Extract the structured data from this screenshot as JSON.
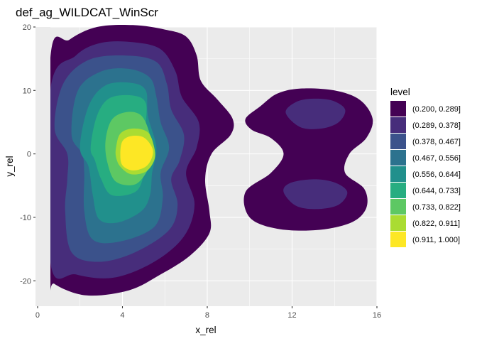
{
  "chart_data": {
    "type": "contour",
    "title": "def_ag_WILDCAT_WinScr",
    "xlabel": "x_rel",
    "ylabel": "y_rel",
    "xlim": [
      -0.1,
      16
    ],
    "ylim": [
      -24,
      20
    ],
    "x_ticks": [
      0,
      4,
      8,
      12,
      16
    ],
    "y_ticks": [
      -20,
      -10,
      0,
      10,
      20
    ],
    "x_tick_labels": [
      "0",
      "4",
      "8",
      "12",
      "16"
    ],
    "y_tick_labels": [
      "-20",
      "-10",
      "0",
      "10",
      "20"
    ],
    "grid": true,
    "legend": {
      "title": "level",
      "position": "right",
      "entries": [
        {
          "label": "(0.200, 0.289]",
          "color": "#440154"
        },
        {
          "label": "(0.289, 0.378]",
          "color": "#472D7B"
        },
        {
          "label": "(0.378, 0.467]",
          "color": "#3B528B"
        },
        {
          "label": "(0.467, 0.556]",
          "color": "#2C728E"
        },
        {
          "label": "(0.556, 0.644]",
          "color": "#21908C"
        },
        {
          "label": "(0.644, 0.733]",
          "color": "#27AD81"
        },
        {
          "label": "(0.733, 0.822]",
          "color": "#5DC863"
        },
        {
          "label": "(0.822, 0.911]",
          "color": "#AADC32"
        },
        {
          "label": "(0.911, 1.000]",
          "color": "#FDE725"
        }
      ]
    },
    "regions": [
      {
        "level": 0,
        "cluster": "left",
        "points": [
          [
            0.6,
            15
          ],
          [
            1.5,
            18
          ],
          [
            2.8,
            20
          ],
          [
            4.5,
            20.3
          ],
          [
            6,
            19.6
          ],
          [
            7,
            18.5
          ],
          [
            7.5,
            15.5
          ],
          [
            7.7,
            11.5
          ],
          [
            8.5,
            8.5
          ],
          [
            9.2,
            5.5
          ],
          [
            9.1,
            3
          ],
          [
            8.2,
            0
          ],
          [
            7.9,
            -4
          ],
          [
            8.1,
            -9
          ],
          [
            8.1,
            -12.5
          ],
          [
            7.2,
            -16
          ],
          [
            5.8,
            -19
          ],
          [
            4.3,
            -21.5
          ],
          [
            2.3,
            -22.3
          ],
          [
            0.8,
            -20.5
          ],
          [
            0.6,
            -18.5
          ]
        ]
      },
      {
        "level": 0,
        "cluster": "right",
        "points": [
          [
            9.8,
            5.5
          ],
          [
            10.5,
            7.5
          ],
          [
            11.3,
            9.5
          ],
          [
            12.4,
            10.3
          ],
          [
            14,
            10
          ],
          [
            15.2,
            8.5
          ],
          [
            15.8,
            5.5
          ],
          [
            15.5,
            2.5
          ],
          [
            14.7,
            0
          ],
          [
            14.5,
            -3
          ],
          [
            15.4,
            -5.5
          ],
          [
            15.5,
            -8.5
          ],
          [
            14.8,
            -10.8
          ],
          [
            13.2,
            -12
          ],
          [
            11.3,
            -11.8
          ],
          [
            10,
            -10
          ],
          [
            9.8,
            -6
          ],
          [
            11,
            -3
          ],
          [
            11.6,
            0
          ],
          [
            11,
            2.5
          ],
          [
            10.1,
            3.8
          ]
        ]
      },
      {
        "level": 1,
        "cluster": "left",
        "points": [
          [
            0.6,
            10
          ],
          [
            1.8,
            15.5
          ],
          [
            3,
            17.5
          ],
          [
            4.5,
            17.6
          ],
          [
            5.8,
            16.5
          ],
          [
            6.5,
            13
          ],
          [
            6.8,
            9
          ],
          [
            7.6,
            5
          ],
          [
            7.5,
            1
          ],
          [
            7,
            -3
          ],
          [
            7.4,
            -8
          ],
          [
            6.9,
            -13
          ],
          [
            5.5,
            -17
          ],
          [
            3.6,
            -19.5
          ],
          [
            1.8,
            -19
          ],
          [
            0.6,
            -17
          ]
        ]
      },
      {
        "level": 1,
        "cluster": "right",
        "points": [
          [
            11.7,
            6.5
          ],
          [
            12.2,
            8.2
          ],
          [
            13,
            8.7
          ],
          [
            13.9,
            8.4
          ],
          [
            14.5,
            7
          ],
          [
            14.2,
            5
          ],
          [
            13.4,
            4
          ],
          [
            12.4,
            4.2
          ]
        ]
      },
      {
        "level": 1,
        "cluster": "right",
        "points": [
          [
            11.6,
            -6
          ],
          [
            11.9,
            -4.6
          ],
          [
            13,
            -4
          ],
          [
            14,
            -4.5
          ],
          [
            14.6,
            -6
          ],
          [
            14.2,
            -8
          ],
          [
            13.2,
            -8.7
          ],
          [
            12.2,
            -8.2
          ]
        ]
      },
      {
        "level": 2,
        "cluster": "left",
        "points": [
          [
            0.8,
            4
          ],
          [
            1.2,
            11
          ],
          [
            2.4,
            14.8
          ],
          [
            4.2,
            15.5
          ],
          [
            5.6,
            14.5
          ],
          [
            6.1,
            11
          ],
          [
            6.3,
            7
          ],
          [
            6.9,
            3
          ],
          [
            6.7,
            -1
          ],
          [
            6.3,
            -4
          ],
          [
            6.6,
            -8
          ],
          [
            6.2,
            -12
          ],
          [
            4.6,
            -15.5
          ],
          [
            2.9,
            -17
          ],
          [
            1.6,
            -15.5
          ],
          [
            1.3,
            -9
          ],
          [
            1.4,
            -4
          ],
          [
            1.4,
            0
          ]
        ]
      },
      {
        "level": 3,
        "cluster": "left",
        "points": [
          [
            1.6,
            3
          ],
          [
            1.9,
            10
          ],
          [
            3,
            13
          ],
          [
            4.3,
            13.4
          ],
          [
            5.3,
            12
          ],
          [
            5.6,
            9
          ],
          [
            5.8,
            5
          ],
          [
            6.2,
            1
          ],
          [
            5.8,
            -3
          ],
          [
            5.9,
            -7
          ],
          [
            5.5,
            -11.5
          ],
          [
            3.9,
            -13.8
          ],
          [
            2.6,
            -13.5
          ],
          [
            2.2,
            -9
          ],
          [
            2.2,
            -3
          ],
          [
            2.1,
            0
          ]
        ]
      },
      {
        "level": 4,
        "cluster": "left",
        "points": [
          [
            2,
            1
          ],
          [
            2.4,
            7.5
          ],
          [
            3.2,
            10.8
          ],
          [
            4.4,
            11.2
          ],
          [
            5.1,
            10
          ],
          [
            5.2,
            6
          ],
          [
            5.6,
            1
          ],
          [
            5.4,
            -3
          ],
          [
            5.3,
            -6.5
          ],
          [
            4.9,
            -9
          ],
          [
            3.8,
            -10.8
          ],
          [
            2.9,
            -10.3
          ],
          [
            2.6,
            -6.5
          ],
          [
            2.4,
            -2
          ]
        ]
      },
      {
        "level": 5,
        "cluster": "left",
        "points": [
          [
            2.5,
            1
          ],
          [
            2.8,
            6
          ],
          [
            3.4,
            8.8
          ],
          [
            4.5,
            9.2
          ],
          [
            5.1,
            8
          ],
          [
            5.1,
            4
          ],
          [
            5.2,
            -0.5
          ],
          [
            5,
            -3.5
          ],
          [
            4.6,
            -6
          ],
          [
            3.5,
            -6.5
          ],
          [
            3,
            -4
          ],
          [
            2.7,
            -1
          ]
        ]
      },
      {
        "level": 6,
        "cluster": "left",
        "points": [
          [
            3.2,
            2
          ],
          [
            3.5,
            5.4
          ],
          [
            4.2,
            6.6
          ],
          [
            4.9,
            6
          ],
          [
            5.3,
            3
          ],
          [
            5.4,
            0
          ],
          [
            5.2,
            -2.5
          ],
          [
            4.6,
            -4.8
          ],
          [
            3.7,
            -4.4
          ],
          [
            3.3,
            -1.5
          ]
        ]
      },
      {
        "level": 7,
        "cluster": "left",
        "points": [
          [
            3.7,
            1
          ],
          [
            3.9,
            3.2
          ],
          [
            4.5,
            4
          ],
          [
            5.2,
            3.4
          ],
          [
            5.5,
            1
          ],
          [
            5.5,
            -1
          ],
          [
            5.1,
            -2.8
          ],
          [
            4.4,
            -3.2
          ],
          [
            3.9,
            -2
          ],
          [
            3.7,
            -0.5
          ]
        ]
      },
      {
        "level": 8,
        "cluster": "left",
        "points": [
          [
            3.9,
            0
          ],
          [
            4,
            2
          ],
          [
            4.4,
            2.8
          ],
          [
            5,
            2.6
          ],
          [
            5.4,
            1
          ],
          [
            5.4,
            -0.5
          ],
          [
            5.1,
            -2
          ],
          [
            4.5,
            -2.6
          ],
          [
            4,
            -1.8
          ]
        ]
      }
    ]
  }
}
